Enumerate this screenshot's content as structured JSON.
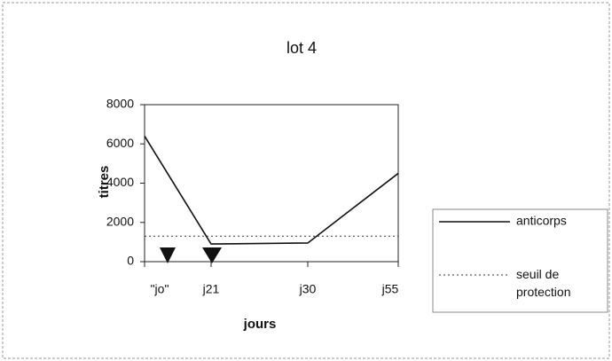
{
  "chart_data": {
    "type": "line",
    "title": "lot 4",
    "x_label": "jours",
    "y_label": "titres",
    "categories": [
      "\"jo\"",
      "j21",
      "j30",
      "j55"
    ],
    "series": [
      {
        "name": "anticorps",
        "color": "#111111",
        "style": "solid",
        "values": [
          6400,
          900,
          950,
          4500
        ]
      },
      {
        "name": "seuil de protection",
        "color": "#333333",
        "style": "dotted",
        "values": [
          1300,
          1300,
          1300,
          1300
        ]
      }
    ],
    "ylim": [
      0,
      8000
    ],
    "yticks": [
      0,
      2000,
      4000,
      6000,
      8000
    ],
    "legend": "right"
  }
}
